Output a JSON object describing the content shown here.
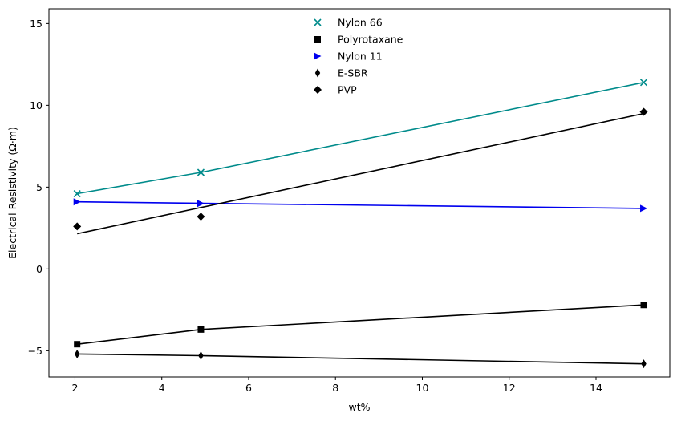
{
  "chart_data": {
    "type": "scatter",
    "xlabel": "wt%",
    "ylabel": "Electrical Resistivity (Ω·m)",
    "xlim": [
      1.4,
      15.7
    ],
    "ylim": [
      -6.6,
      15.9
    ],
    "xticks": [
      2,
      4,
      6,
      8,
      10,
      12,
      14
    ],
    "yticks": [
      -5,
      0,
      5,
      10,
      15
    ],
    "grid": false,
    "legend_position": "top-center",
    "series": [
      {
        "name": "Nylon 66",
        "marker": "x",
        "color": "#008b8b",
        "points": [
          [
            2.05,
            4.6
          ],
          [
            4.9,
            5.9
          ],
          [
            15.1,
            11.4
          ]
        ],
        "fit": [
          [
            2.05,
            4.6
          ],
          [
            4.9,
            5.9
          ],
          [
            15.1,
            11.4
          ]
        ]
      },
      {
        "name": "Polyrotaxane",
        "marker": "square",
        "color": "#000000",
        "points": [
          [
            2.05,
            -4.6
          ],
          [
            4.9,
            -3.7
          ],
          [
            15.1,
            -2.2
          ]
        ],
        "fit": [
          [
            2.05,
            -4.6
          ],
          [
            4.9,
            -3.7
          ],
          [
            15.1,
            -2.2
          ]
        ]
      },
      {
        "name": "Nylon 11",
        "marker": "triangle-right",
        "color": "#0000ee",
        "points": [
          [
            2.05,
            4.1
          ],
          [
            4.9,
            4.0
          ],
          [
            15.1,
            3.7
          ]
        ],
        "fit": [
          [
            2.05,
            4.1
          ],
          [
            15.1,
            3.7
          ]
        ]
      },
      {
        "name": "E-SBR",
        "marker": "thin-diamond",
        "color": "#000000",
        "points": [
          [
            2.05,
            -5.2
          ],
          [
            4.9,
            -5.3
          ],
          [
            15.1,
            -5.8
          ]
        ],
        "fit": [
          [
            2.05,
            -5.2
          ],
          [
            4.9,
            -5.3
          ],
          [
            15.1,
            -5.8
          ]
        ]
      },
      {
        "name": "PVP",
        "marker": "diamond",
        "color": "#000000",
        "points": [
          [
            2.05,
            2.6
          ],
          [
            4.9,
            3.2
          ],
          [
            15.1,
            9.6
          ]
        ],
        "fit": [
          [
            2.05,
            2.15
          ],
          [
            15.1,
            9.5
          ]
        ]
      }
    ]
  }
}
